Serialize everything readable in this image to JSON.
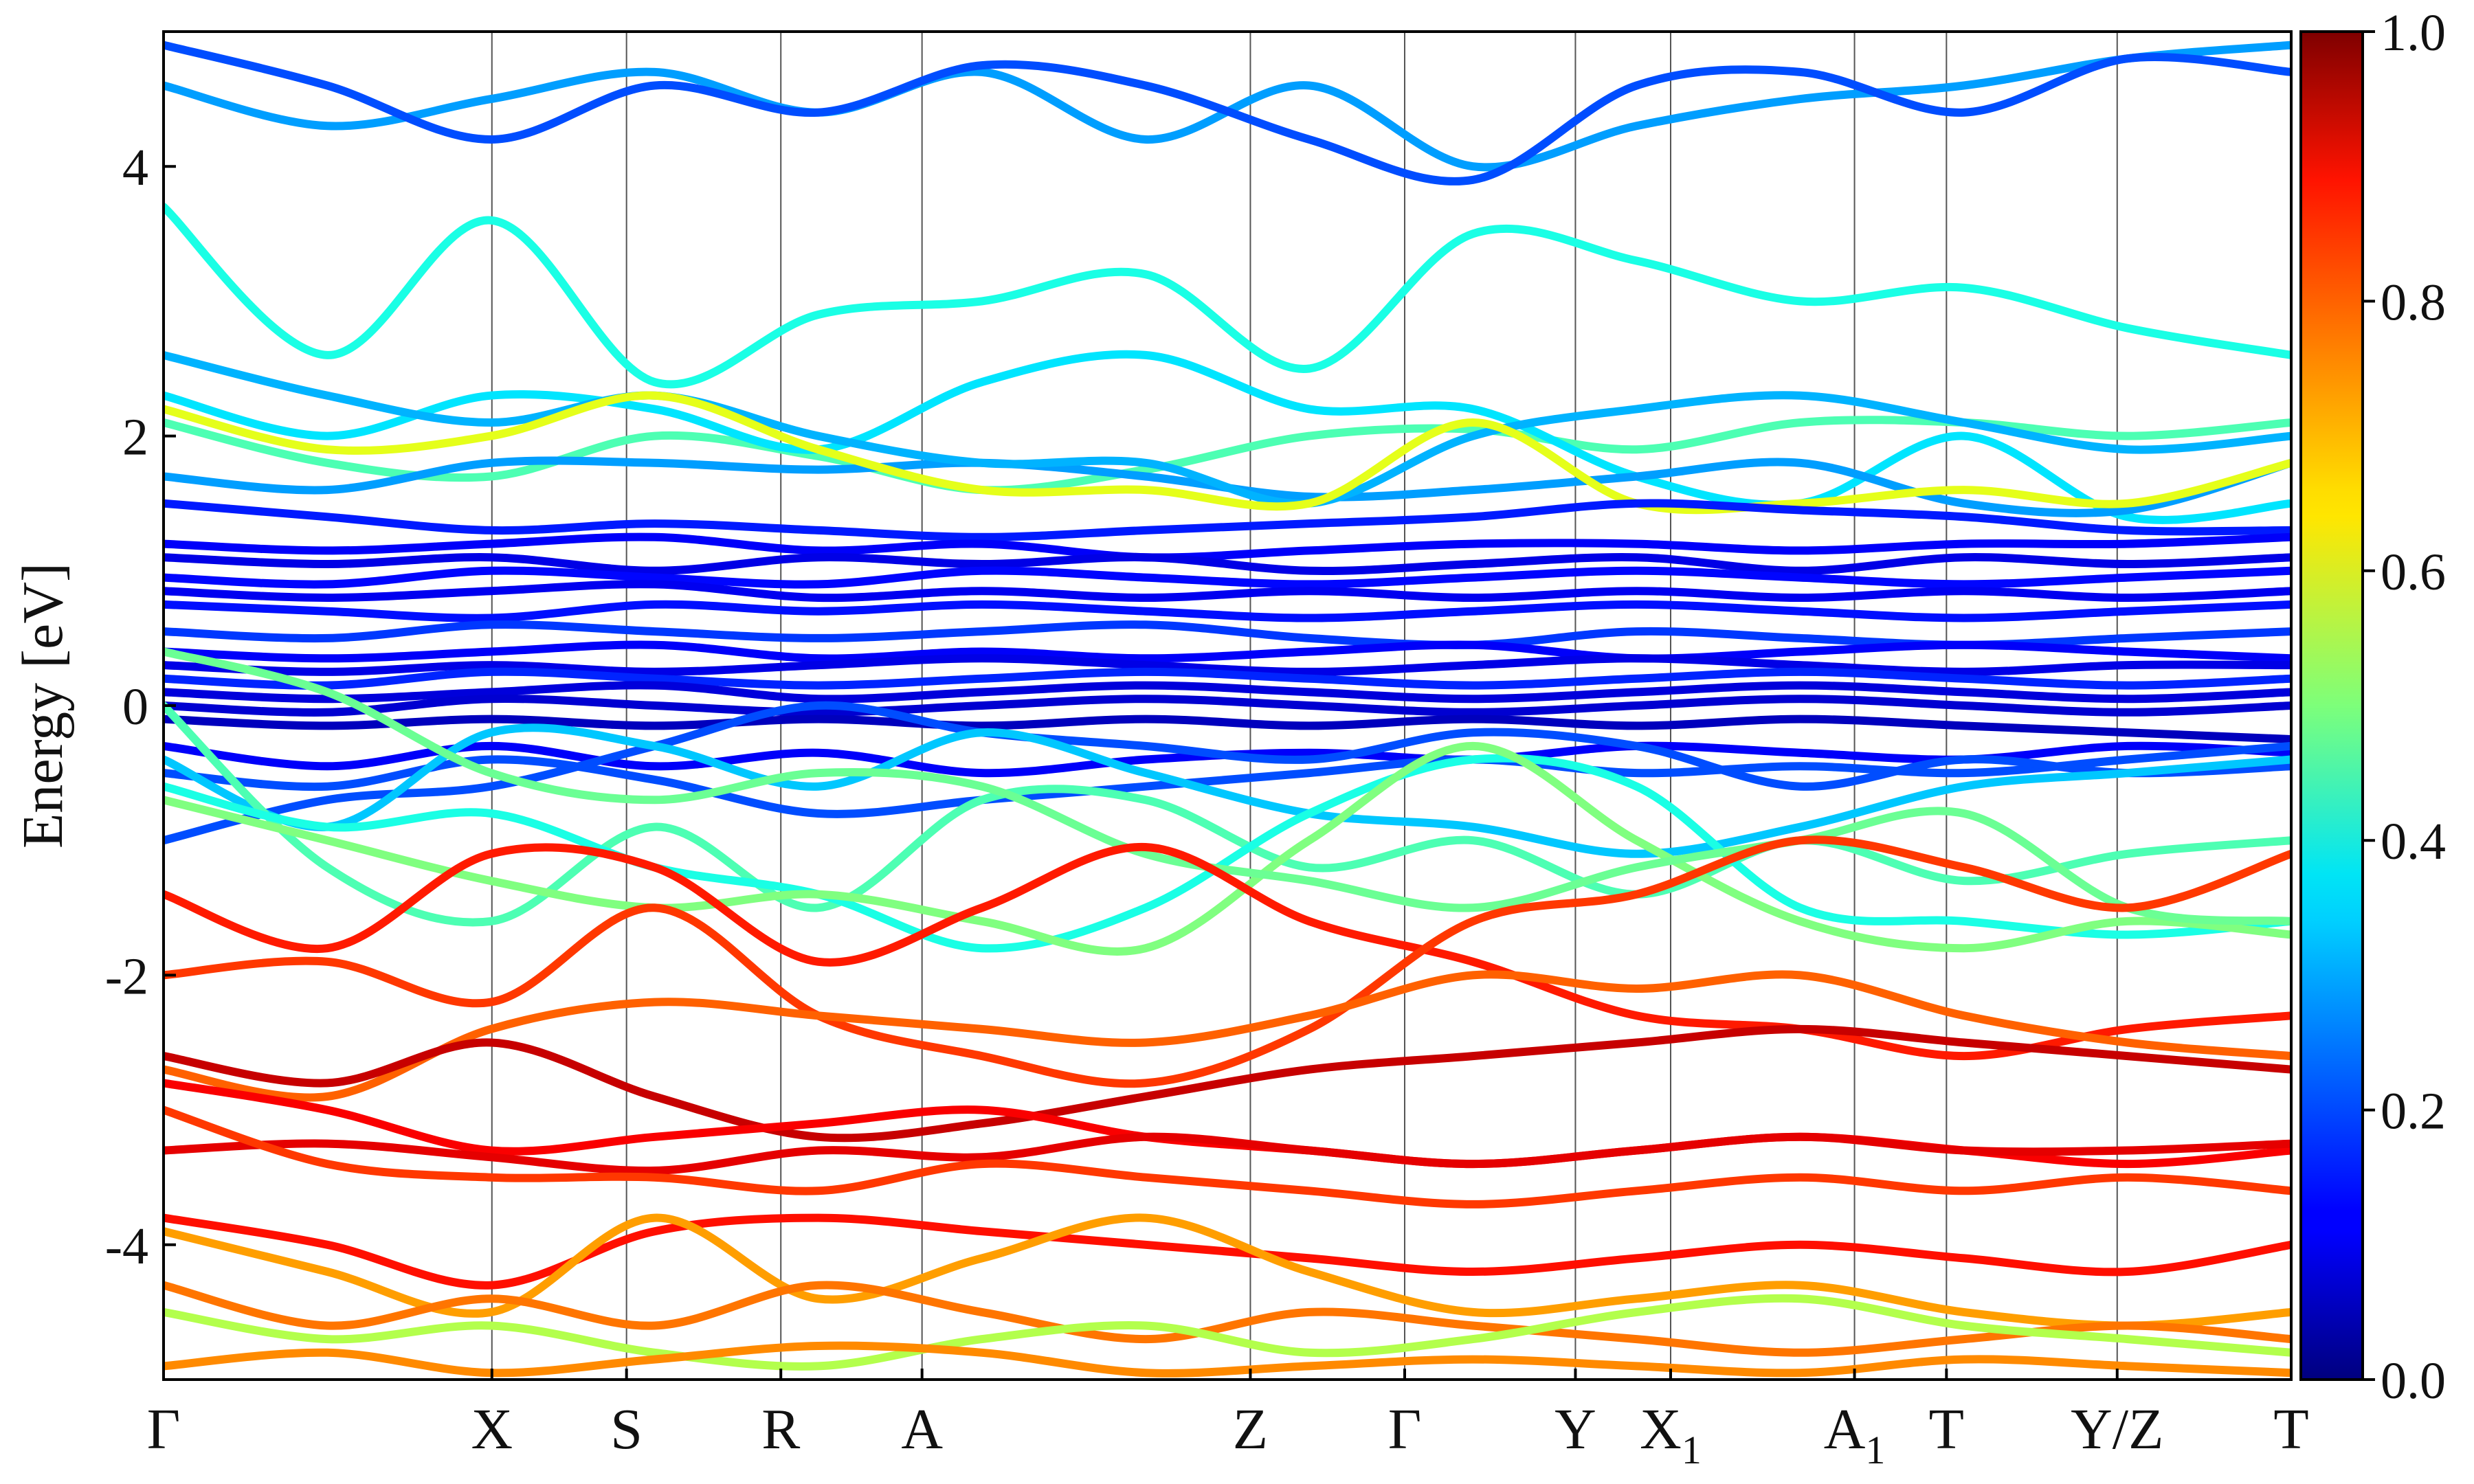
{
  "chart_data": {
    "type": "line",
    "ylabel": "Energy [eV]",
    "ylim": [
      -5,
      5
    ],
    "y_ticks": [
      "4",
      "2",
      "0",
      "-2",
      "-4"
    ],
    "y_tick_values": [
      4,
      2,
      0,
      -2,
      -4
    ],
    "colorbar": {
      "range": [
        0.0,
        1.0
      ],
      "ticks": [
        "1.0",
        "0.8",
        "0.6",
        "0.4",
        "0.2",
        "0.0"
      ],
      "tick_values": [
        1.0,
        0.8,
        0.6,
        0.4,
        0.2,
        0.0
      ],
      "colormap": "jet"
    },
    "k_path": {
      "labels": [
        {
          "main": "Γ",
          "sub": ""
        },
        {
          "main": "X",
          "sub": ""
        },
        {
          "main": "S",
          "sub": ""
        },
        {
          "main": "R",
          "sub": ""
        },
        {
          "main": "A",
          "sub": ""
        },
        {
          "main": "Z",
          "sub": ""
        },
        {
          "main": "Γ",
          "sub": ""
        },
        {
          "main": "Y",
          "sub": ""
        },
        {
          "main": "X",
          "sub": "1"
        },
        {
          "main": "A",
          "sub": "1"
        },
        {
          "main": "T",
          "sub": ""
        },
        {
          "main": "Y/Z",
          "sub": ""
        },
        {
          "main": "T",
          "sub": ""
        }
      ],
      "positions": [
        0.0,
        1.0,
        1.41,
        1.88,
        2.31,
        3.31,
        3.78,
        4.3,
        4.59,
        5.15,
        5.43,
        5.95,
        6.48
      ]
    },
    "series": [
      {
        "c": 0.45,
        "y": [
          2.1,
          1.8,
          1.7,
          2.0,
          1.85,
          1.6,
          1.75,
          2.0,
          2.05,
          1.9,
          2.1,
          2.1,
          2.0,
          2.1
        ]
      },
      {
        "c": 0.4,
        "y": [
          3.7,
          2.6,
          3.6,
          2.4,
          2.9,
          3.0,
          3.2,
          2.5,
          3.5,
          3.3,
          3.0,
          3.1,
          2.8,
          2.6
        ]
      },
      {
        "c": 0.35,
        "y": [
          2.3,
          2.0,
          2.3,
          2.2,
          1.9,
          2.4,
          2.6,
          2.2,
          2.2,
          1.7,
          1.5,
          2.0,
          1.4,
          1.5
        ]
      },
      {
        "c": 0.28,
        "y": [
          4.6,
          4.3,
          4.5,
          4.7,
          4.4,
          4.7,
          4.2,
          4.6,
          4.0,
          4.3,
          4.5,
          4.6,
          4.8,
          4.9
        ]
      },
      {
        "c": 0.2,
        "y": [
          4.9,
          4.6,
          4.2,
          4.6,
          4.4,
          4.75,
          4.6,
          4.2,
          3.9,
          4.6,
          4.7,
          4.4,
          4.8,
          4.7
        ]
      },
      {
        "c": 0.28,
        "y": [
          1.7,
          1.6,
          1.8,
          1.8,
          1.75,
          1.8,
          1.7,
          1.55,
          1.6,
          1.7,
          1.8,
          1.5,
          1.45,
          1.8
        ]
      },
      {
        "c": 0.3,
        "y": [
          2.6,
          2.3,
          2.1,
          2.3,
          2.0,
          1.8,
          1.8,
          1.5,
          2.0,
          2.2,
          2.3,
          2.1,
          1.9,
          2.0
        ]
      },
      {
        "c": 0.6,
        "y": [
          2.2,
          1.9,
          2.0,
          2.3,
          1.9,
          1.6,
          1.6,
          1.5,
          2.1,
          1.5,
          1.5,
          1.6,
          1.5,
          1.8
        ]
      },
      {
        "c": 0.15,
        "y": [
          1.5,
          1.4,
          1.3,
          1.35,
          1.3,
          1.25,
          1.3,
          1.35,
          1.4,
          1.5,
          1.45,
          1.4,
          1.3,
          1.3
        ]
      },
      {
        "c": 0.12,
        "y": [
          1.2,
          1.15,
          1.2,
          1.25,
          1.15,
          1.2,
          1.1,
          1.15,
          1.2,
          1.2,
          1.15,
          1.2,
          1.2,
          1.25
        ]
      },
      {
        "c": 0.1,
        "y": [
          1.1,
          1.05,
          1.1,
          1.0,
          1.1,
          1.05,
          1.1,
          1.0,
          1.05,
          1.1,
          1.0,
          1.1,
          1.05,
          1.1
        ]
      },
      {
        "c": 0.13,
        "y": [
          0.95,
          0.9,
          1.0,
          0.95,
          0.9,
          1.0,
          0.95,
          0.9,
          0.95,
          1.0,
          0.95,
          0.9,
          0.95,
          1.0
        ]
      },
      {
        "c": 0.11,
        "y": [
          0.85,
          0.8,
          0.85,
          0.9,
          0.8,
          0.85,
          0.8,
          0.85,
          0.8,
          0.85,
          0.8,
          0.85,
          0.8,
          0.85
        ]
      },
      {
        "c": 0.14,
        "y": [
          0.75,
          0.7,
          0.65,
          0.75,
          0.7,
          0.75,
          0.7,
          0.65,
          0.7,
          0.75,
          0.7,
          0.65,
          0.7,
          0.75
        ]
      },
      {
        "c": 0.18,
        "y": [
          0.55,
          0.5,
          0.6,
          0.55,
          0.5,
          0.55,
          0.6,
          0.5,
          0.45,
          0.55,
          0.5,
          0.45,
          0.5,
          0.55
        ]
      },
      {
        "c": 0.12,
        "y": [
          0.4,
          0.35,
          0.4,
          0.45,
          0.35,
          0.4,
          0.35,
          0.4,
          0.45,
          0.35,
          0.4,
          0.45,
          0.4,
          0.35
        ]
      },
      {
        "c": 0.1,
        "y": [
          0.3,
          0.25,
          0.3,
          0.25,
          0.3,
          0.35,
          0.3,
          0.25,
          0.3,
          0.35,
          0.3,
          0.25,
          0.3,
          0.3
        ]
      },
      {
        "c": 0.16,
        "y": [
          0.2,
          0.15,
          0.25,
          0.2,
          0.15,
          0.2,
          0.25,
          0.2,
          0.15,
          0.2,
          0.25,
          0.2,
          0.15,
          0.2
        ]
      },
      {
        "c": 0.09,
        "y": [
          0.1,
          0.05,
          0.1,
          0.15,
          0.05,
          0.1,
          0.15,
          0.1,
          0.05,
          0.1,
          0.15,
          0.1,
          0.05,
          0.1
        ]
      },
      {
        "c": 0.08,
        "y": [
          0.0,
          -0.05,
          0.05,
          0.0,
          -0.05,
          0.0,
          0.05,
          0.0,
          -0.05,
          0.0,
          0.05,
          0.0,
          -0.05,
          0.0
        ]
      },
      {
        "c": 0.06,
        "y": [
          -0.1,
          -0.15,
          -0.1,
          -0.15,
          -0.1,
          -0.15,
          -0.1,
          -0.15,
          -0.1,
          -0.15,
          -0.1,
          -0.15,
          -0.2,
          -0.25
        ]
      },
      {
        "c": 0.12,
        "y": [
          -0.3,
          -0.45,
          -0.3,
          -0.45,
          -0.35,
          -0.5,
          -0.4,
          -0.35,
          -0.4,
          -0.3,
          -0.35,
          -0.4,
          -0.3,
          -0.35
        ]
      },
      {
        "c": 0.2,
        "y": [
          -0.5,
          -0.6,
          -0.4,
          -0.55,
          -0.8,
          -0.7,
          -0.6,
          -0.5,
          -0.4,
          -0.5,
          -0.45,
          -0.5,
          -0.4,
          -0.3
        ]
      },
      {
        "c": 0.2,
        "y": [
          -1.0,
          -0.7,
          -0.6,
          -0.3,
          0.0,
          -0.2,
          -0.3,
          -0.4,
          -0.2,
          -0.3,
          -0.6,
          -0.4,
          -0.5,
          -0.45
        ]
      },
      {
        "c": 0.32,
        "y": [
          -0.4,
          -0.9,
          -0.2,
          -0.3,
          -0.6,
          -0.2,
          -0.5,
          -0.8,
          -0.9,
          -1.1,
          -0.9,
          -0.6,
          -0.5,
          -0.4
        ]
      },
      {
        "c": 0.45,
        "y": [
          0.0,
          -1.2,
          -1.6,
          -0.9,
          -1.5,
          -0.7,
          -0.7,
          -1.2,
          -1.0,
          -1.4,
          -1.0,
          -1.3,
          -1.1,
          -1.0
        ]
      },
      {
        "c": 0.4,
        "y": [
          -0.6,
          -0.9,
          -0.8,
          -1.2,
          -1.4,
          -1.8,
          -1.5,
          -0.8,
          -0.4,
          -0.6,
          -1.5,
          -1.6,
          -1.7,
          -1.6
        ]
      },
      {
        "c": 0.5,
        "y": [
          -0.7,
          -1.0,
          -1.3,
          -1.5,
          -1.4,
          -1.6,
          -1.8,
          -1.0,
          -0.3,
          -1.0,
          -1.6,
          -1.8,
          -1.6,
          -1.7
        ]
      },
      {
        "c": 0.48,
        "y": [
          0.4,
          0.1,
          -0.5,
          -0.7,
          -0.5,
          -0.6,
          -1.1,
          -1.3,
          -1.5,
          -1.2,
          -1.0,
          -0.8,
          -1.5,
          -1.6
        ]
      },
      {
        "c": 0.85,
        "y": [
          -1.4,
          -1.8,
          -1.1,
          -1.2,
          -1.9,
          -1.5,
          -1.05,
          -1.6,
          -1.9,
          -2.3,
          -2.4,
          -2.6,
          -2.4,
          -2.3
        ]
      },
      {
        "c": 0.82,
        "y": [
          -2.0,
          -1.9,
          -2.2,
          -1.5,
          -2.3,
          -2.6,
          -2.8,
          -2.4,
          -1.6,
          -1.4,
          -1.0,
          -1.2,
          -1.5,
          -1.1
        ]
      },
      {
        "c": 0.78,
        "y": [
          -2.7,
          -2.9,
          -2.4,
          -2.2,
          -2.3,
          -2.4,
          -2.5,
          -2.3,
          -2.0,
          -2.1,
          -2.0,
          -2.3,
          -2.5,
          -2.6
        ]
      },
      {
        "c": 0.93,
        "y": [
          -2.6,
          -2.8,
          -2.5,
          -2.9,
          -3.2,
          -3.1,
          -2.9,
          -2.7,
          -2.6,
          -2.5,
          -2.4,
          -2.5,
          -2.6,
          -2.7
        ]
      },
      {
        "c": 0.88,
        "y": [
          -2.8,
          -3.0,
          -3.3,
          -3.2,
          -3.1,
          -3.0,
          -3.2,
          -3.3,
          -3.4,
          -3.3,
          -3.2,
          -3.3,
          -3.4,
          -3.3
        ]
      },
      {
        "c": 0.9,
        "y": [
          -3.3,
          -3.25,
          -3.35,
          -3.45,
          -3.3,
          -3.35,
          -3.2,
          -3.3,
          -3.4,
          -3.3,
          -3.2,
          -3.3,
          -3.3,
          -3.25
        ]
      },
      {
        "c": 0.82,
        "y": [
          -3.0,
          -3.4,
          -3.5,
          -3.5,
          -3.6,
          -3.4,
          -3.5,
          -3.6,
          -3.7,
          -3.6,
          -3.5,
          -3.6,
          -3.5,
          -3.6
        ]
      },
      {
        "c": 0.86,
        "y": [
          -3.8,
          -4.0,
          -4.3,
          -3.9,
          -3.8,
          -3.9,
          -4.0,
          -4.1,
          -4.2,
          -4.1,
          -4.0,
          -4.1,
          -4.2,
          -4.0
        ]
      },
      {
        "c": 0.72,
        "y": [
          -3.9,
          -4.2,
          -4.5,
          -3.8,
          -4.4,
          -4.1,
          -3.8,
          -4.2,
          -4.5,
          -4.4,
          -4.3,
          -4.5,
          -4.6,
          -4.5
        ]
      },
      {
        "c": 0.76,
        "y": [
          -4.3,
          -4.6,
          -4.4,
          -4.6,
          -4.3,
          -4.5,
          -4.7,
          -4.5,
          -4.6,
          -4.7,
          -4.8,
          -4.7,
          -4.6,
          -4.7
        ]
      },
      {
        "c": 0.55,
        "y": [
          -4.5,
          -4.7,
          -4.6,
          -4.8,
          -4.9,
          -4.7,
          -4.6,
          -4.8,
          -4.7,
          -4.5,
          -4.4,
          -4.6,
          -4.7,
          -4.8
        ]
      },
      {
        "c": 0.74,
        "y": [
          -4.9,
          -4.8,
          -4.95,
          -4.85,
          -4.75,
          -4.8,
          -4.95,
          -4.9,
          -4.85,
          -4.9,
          -4.95,
          -4.85,
          -4.9,
          -4.95
        ]
      }
    ]
  }
}
